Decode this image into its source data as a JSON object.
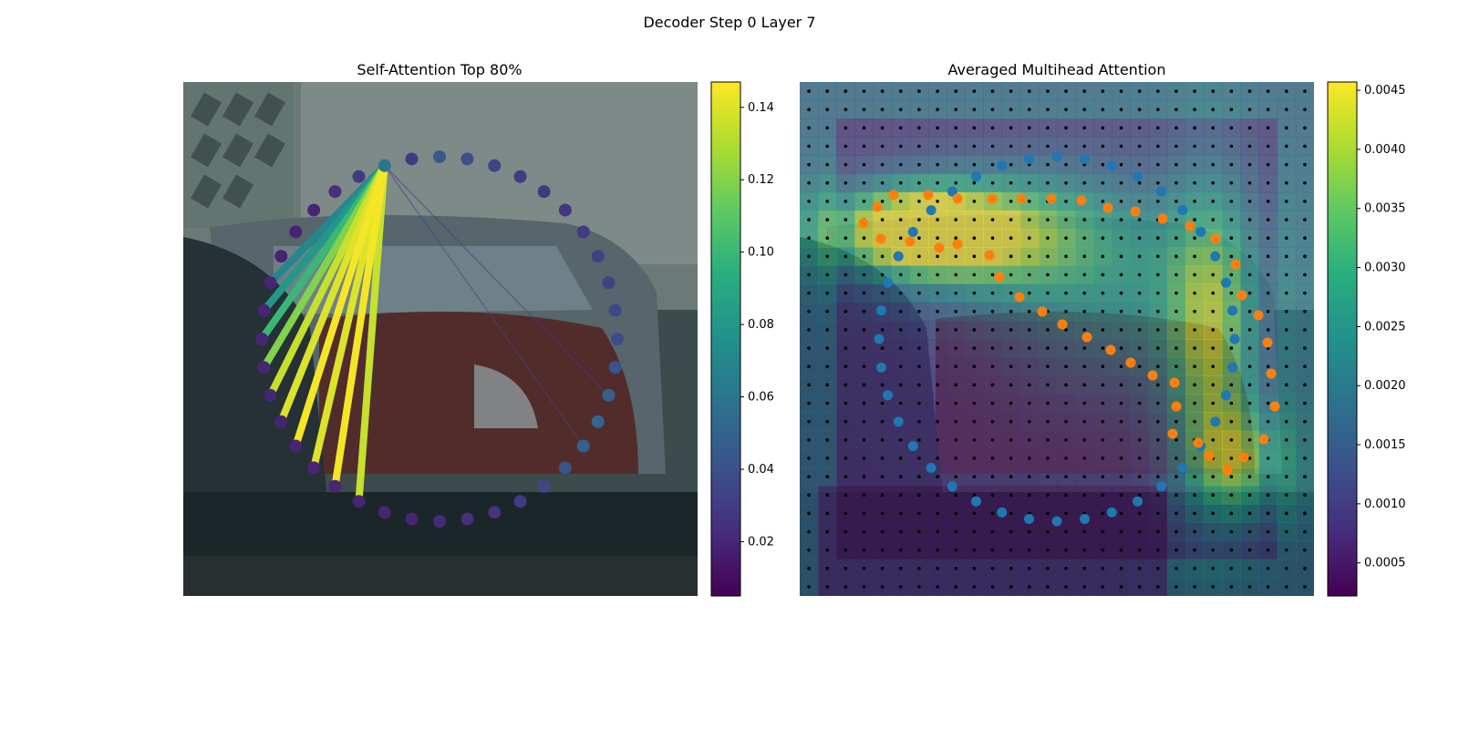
{
  "figure": {
    "suptitle": "Decoder Step 0 Layer 7"
  },
  "chart_data": [
    {
      "type": "scatter",
      "title": "Self-Attention Top 80%",
      "description_free": true,
      "background": "photo-car",
      "num_points": 40,
      "point_values": [
        0.045,
        0.04,
        0.035,
        0.03,
        0.028,
        0.028,
        0.03,
        0.032,
        0.034,
        0.036,
        0.038,
        0.042,
        0.048,
        0.052,
        0.048,
        0.042,
        0.036,
        0.03,
        0.026,
        0.024,
        0.022,
        0.02,
        0.02,
        0.02,
        0.02,
        0.02,
        0.02,
        0.02,
        0.02,
        0.02,
        0.02,
        0.02,
        0.02,
        0.02,
        0.02,
        0.02,
        0.025,
        0.03,
        0.06,
        0.03
      ],
      "query_index": 38,
      "attention_links": [
        {
          "target": 23,
          "weight": 0.135
        },
        {
          "target": 24,
          "weight": 0.145
        },
        {
          "target": 25,
          "weight": 0.14
        },
        {
          "target": 26,
          "weight": 0.145
        },
        {
          "target": 27,
          "weight": 0.14
        },
        {
          "target": 28,
          "weight": 0.135
        },
        {
          "target": 29,
          "weight": 0.12
        },
        {
          "target": 30,
          "weight": 0.1
        },
        {
          "target": 31,
          "weight": 0.08
        },
        {
          "target": 32,
          "weight": 0.07
        },
        {
          "target": 14,
          "weight": 0.035
        },
        {
          "target": 12,
          "weight": 0.03
        }
      ],
      "colorbar": {
        "ticks": [
          0.02,
          0.04,
          0.06,
          0.08,
          0.1,
          0.12,
          0.14
        ],
        "tick_labels": [
          "0.02",
          "0.04",
          "0.06",
          "0.08",
          "0.10",
          "0.12",
          "0.14"
        ],
        "range": [
          0.005,
          0.147
        ],
        "colormap": "viridis"
      }
    },
    {
      "type": "heatmap",
      "title": "Averaged Multihead Attention",
      "background": "photo-car",
      "grid": {
        "cols": 28,
        "rows": 28
      },
      "hotspots": [
        {
          "cx": 0.22,
          "cy": 0.29,
          "sx": 0.12,
          "sy": 0.06,
          "v": 1.0
        },
        {
          "cx": 0.4,
          "cy": 0.3,
          "sx": 0.15,
          "sy": 0.09,
          "v": 0.55
        },
        {
          "cx": 0.8,
          "cy": 0.5,
          "sx": 0.06,
          "sy": 0.22,
          "v": 0.6
        },
        {
          "cx": 0.86,
          "cy": 0.74,
          "sx": 0.07,
          "sy": 0.08,
          "v": 0.55
        },
        {
          "cx": 0.65,
          "cy": 0.4,
          "sx": 0.18,
          "sy": 0.15,
          "v": 0.35
        }
      ],
      "series": [
        {
          "name": "blue",
          "color": "#1f77b4",
          "shape": "ellipse",
          "count": 40
        },
        {
          "name": "orange",
          "color": "#ff7f0e",
          "shape": "heart",
          "count": 40
        }
      ],
      "colorbar": {
        "ticks": [
          0.0005,
          0.001,
          0.0015,
          0.002,
          0.0025,
          0.003,
          0.0035,
          0.004,
          0.0045
        ],
        "tick_labels": [
          "0.0005",
          "0.0010",
          "0.0015",
          "0.0020",
          "0.0025",
          "0.0030",
          "0.0035",
          "0.0040",
          "0.0045"
        ],
        "range": [
          0.00022,
          0.00457
        ],
        "colormap": "viridis"
      }
    }
  ]
}
